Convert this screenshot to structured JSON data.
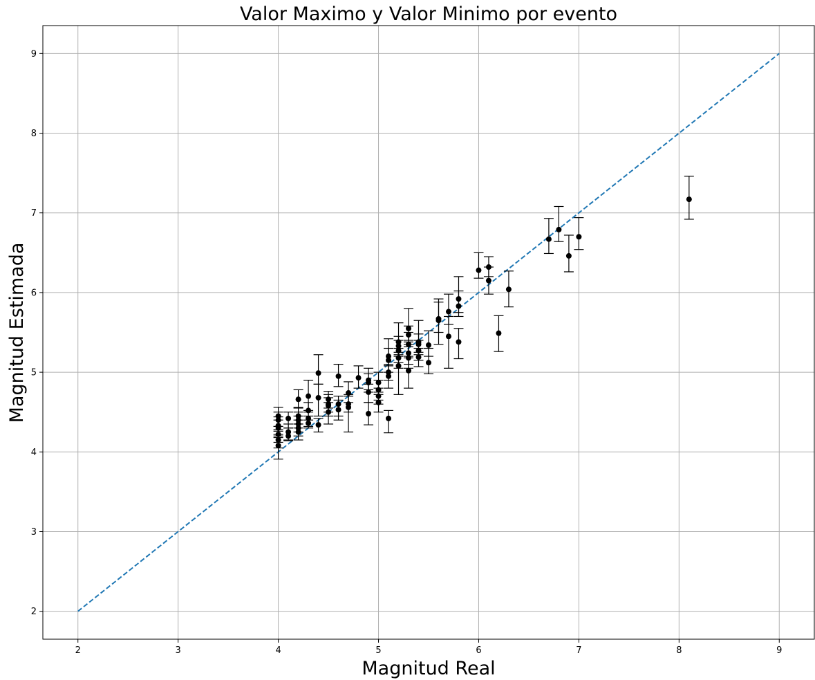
{
  "chart_data": {
    "type": "scatter",
    "title": "Valor Maximo y Valor Minimo por evento",
    "xlabel": "Magnitud Real",
    "ylabel": "Magnitud Estimada",
    "xlim": [
      1.65,
      9.35
    ],
    "ylim": [
      1.65,
      9.35
    ],
    "xticks": [
      2,
      3,
      4,
      5,
      6,
      7,
      8,
      9
    ],
    "yticks": [
      2,
      3,
      4,
      5,
      6,
      7,
      8,
      9
    ],
    "grid": true,
    "colors": {
      "points": "#000000",
      "reference_line": "#1f77b4",
      "grid": "#b0b0b0"
    },
    "reference_line": {
      "style": "dashed",
      "x": [
        2,
        9
      ],
      "y": [
        2,
        9
      ]
    },
    "series": [
      {
        "points": [
          [
            4.0,
            4.45,
            4.32,
            4.56
          ],
          [
            4.0,
            4.4,
            4.28,
            4.5
          ],
          [
            4.0,
            4.33,
            4.22,
            4.44
          ],
          [
            4.0,
            4.3,
            4.18,
            4.4
          ],
          [
            4.0,
            4.22,
            4.12,
            4.32
          ],
          [
            4.0,
            4.15,
            4.05,
            4.26
          ],
          [
            4.0,
            4.08,
            3.91,
            4.2
          ],
          [
            4.1,
            4.42,
            4.3,
            4.5
          ],
          [
            4.1,
            4.25,
            4.15,
            4.35
          ],
          [
            4.1,
            4.2,
            4.14,
            4.3
          ],
          [
            4.2,
            4.66,
            4.55,
            4.78
          ],
          [
            4.2,
            4.45,
            4.35,
            4.56
          ],
          [
            4.2,
            4.4,
            4.3,
            4.5
          ],
          [
            4.2,
            4.35,
            4.25,
            4.45
          ],
          [
            4.2,
            4.3,
            4.2,
            4.4
          ],
          [
            4.2,
            4.25,
            4.15,
            4.35
          ],
          [
            4.3,
            4.7,
            4.5,
            4.9
          ],
          [
            4.3,
            4.52,
            4.4,
            4.62
          ],
          [
            4.3,
            4.42,
            4.32,
            4.52
          ],
          [
            4.3,
            4.36,
            4.3,
            4.45
          ],
          [
            4.4,
            4.99,
            4.85,
            5.22
          ],
          [
            4.4,
            4.68,
            4.45,
            4.85
          ],
          [
            4.4,
            4.34,
            4.25,
            4.42
          ],
          [
            4.5,
            4.66,
            4.55,
            4.76
          ],
          [
            4.5,
            4.6,
            4.5,
            4.72
          ],
          [
            4.5,
            4.58,
            4.45,
            4.68
          ],
          [
            4.5,
            4.5,
            4.35,
            4.62
          ],
          [
            4.6,
            4.95,
            4.82,
            5.1
          ],
          [
            4.6,
            4.6,
            4.45,
            4.7
          ],
          [
            4.6,
            4.53,
            4.4,
            4.65
          ],
          [
            4.7,
            4.74,
            4.62,
            4.88
          ],
          [
            4.7,
            4.6,
            4.5,
            4.7
          ],
          [
            4.7,
            4.56,
            4.25,
            4.72
          ],
          [
            4.8,
            4.93,
            4.8,
            5.08
          ],
          [
            4.9,
            4.9,
            4.78,
            5.05
          ],
          [
            4.9,
            4.87,
            4.75,
            4.98
          ],
          [
            4.9,
            4.75,
            4.62,
            4.85
          ],
          [
            4.9,
            4.48,
            4.34,
            4.62
          ],
          [
            5.0,
            4.87,
            4.75,
            5.0
          ],
          [
            5.0,
            4.78,
            4.65,
            4.9
          ],
          [
            5.0,
            4.7,
            4.6,
            4.8
          ],
          [
            5.0,
            4.62,
            4.5,
            4.72
          ],
          [
            5.1,
            5.2,
            5.08,
            5.42
          ],
          [
            5.1,
            5.15,
            5.0,
            5.3
          ],
          [
            5.1,
            5.0,
            4.9,
            5.1
          ],
          [
            5.1,
            4.95,
            4.8,
            5.08
          ],
          [
            5.1,
            4.42,
            4.24,
            4.52
          ],
          [
            5.2,
            5.38,
            5.25,
            5.62
          ],
          [
            5.2,
            5.33,
            5.22,
            5.45
          ],
          [
            5.2,
            5.27,
            5.12,
            5.4
          ],
          [
            5.2,
            5.18,
            5.05,
            5.3
          ],
          [
            5.2,
            5.08,
            4.72,
            5.2
          ],
          [
            5.3,
            5.55,
            5.4,
            5.8
          ],
          [
            5.3,
            5.47,
            5.35,
            5.58
          ],
          [
            5.3,
            5.35,
            5.2,
            5.5
          ],
          [
            5.3,
            5.24,
            5.1,
            5.38
          ],
          [
            5.3,
            5.18,
            5.05,
            5.32
          ],
          [
            5.3,
            5.02,
            4.8,
            5.18
          ],
          [
            5.4,
            5.38,
            5.25,
            5.65
          ],
          [
            5.4,
            5.35,
            5.22,
            5.48
          ],
          [
            5.4,
            5.27,
            5.15,
            5.4
          ],
          [
            5.4,
            5.19,
            5.07,
            5.3
          ],
          [
            5.5,
            5.34,
            5.2,
            5.52
          ],
          [
            5.5,
            5.12,
            4.98,
            5.3
          ],
          [
            5.6,
            5.67,
            5.5,
            5.92
          ],
          [
            5.6,
            5.65,
            5.35,
            5.88
          ],
          [
            5.7,
            5.76,
            5.6,
            5.98
          ],
          [
            5.7,
            5.45,
            5.05,
            5.7
          ],
          [
            5.8,
            5.92,
            5.75,
            6.2
          ],
          [
            5.8,
            5.83,
            5.7,
            6.02
          ],
          [
            5.8,
            5.38,
            5.17,
            5.55
          ],
          [
            6.0,
            6.28,
            6.18,
            6.5
          ],
          [
            6.1,
            6.32,
            6.2,
            6.45
          ],
          [
            6.1,
            6.15,
            5.98,
            6.32
          ],
          [
            6.2,
            5.49,
            5.26,
            5.71
          ],
          [
            6.3,
            6.04,
            5.82,
            6.27
          ],
          [
            6.7,
            6.67,
            6.49,
            6.93
          ],
          [
            6.8,
            6.79,
            6.64,
            7.08
          ],
          [
            6.9,
            6.46,
            6.26,
            6.72
          ],
          [
            7.0,
            6.7,
            6.54,
            6.94
          ],
          [
            8.1,
            7.17,
            6.92,
            7.46
          ]
        ]
      }
    ]
  }
}
